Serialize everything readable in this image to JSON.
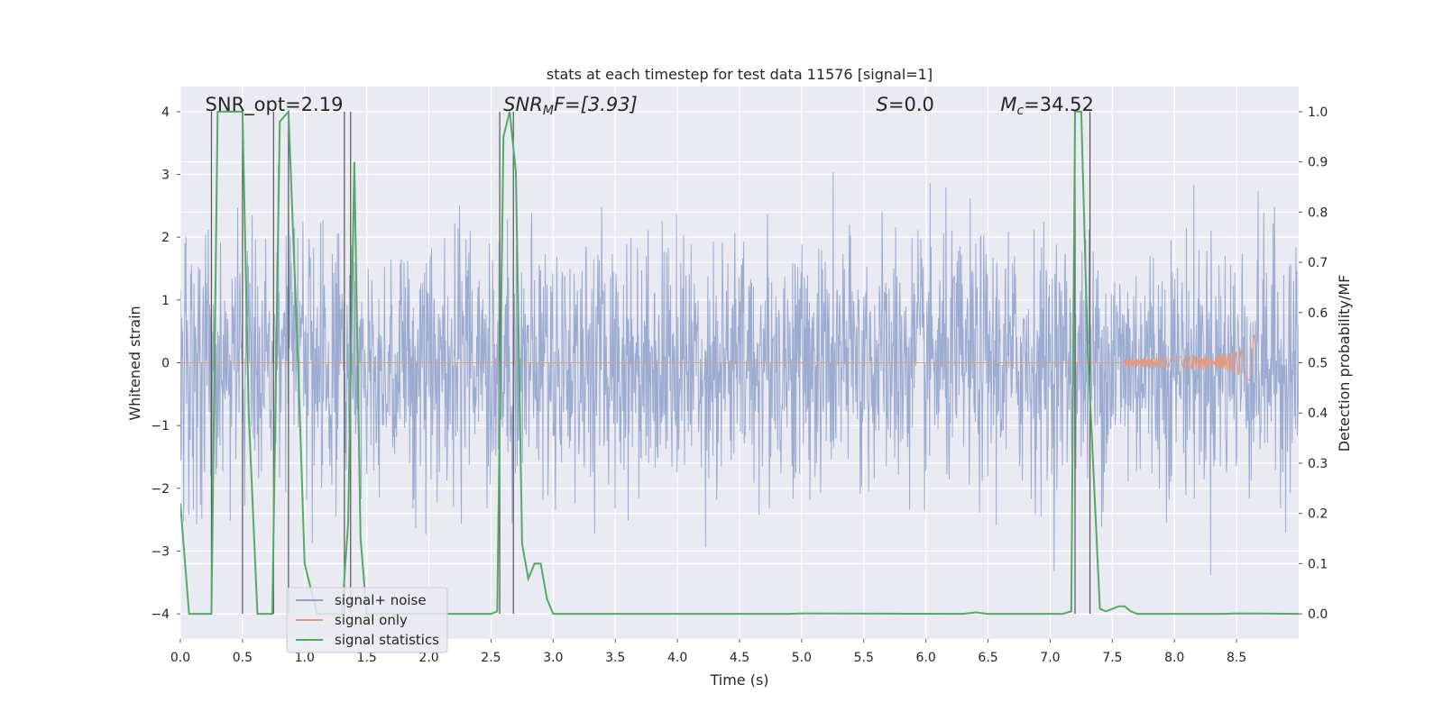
{
  "chart_data": {
    "type": "line",
    "title": "stats at each timestep for test data 11576 [signal=1]",
    "xlabel": "Time (s)",
    "ylabel_left": "Whitened strain",
    "ylabel_right": "Detection probability/MF",
    "xlim": [
      0.0,
      9.0
    ],
    "ylim_left": [
      -4.4,
      4.4
    ],
    "ylim_right": [
      -0.05,
      1.05
    ],
    "x_ticks": [
      0.0,
      0.5,
      1.0,
      1.5,
      2.0,
      2.5,
      3.0,
      3.5,
      4.0,
      4.5,
      5.0,
      5.5,
      6.0,
      6.5,
      7.0,
      7.5,
      8.0,
      8.5
    ],
    "x_tick_labels": [
      "0.0",
      "0.5",
      "1.0",
      "1.5",
      "2.0",
      "2.5",
      "3.0",
      "3.5",
      "4.0",
      "4.5",
      "5.0",
      "5.5",
      "6.0",
      "6.5",
      "7.0",
      "7.5",
      "8.0",
      "8.5"
    ],
    "y_left_ticks": [
      -4,
      -3,
      -2,
      -1,
      0,
      1,
      2,
      3,
      4
    ],
    "y_left_tick_labels": [
      "−4",
      "−3",
      "−2",
      "−1",
      "0",
      "1",
      "2",
      "3",
      "4"
    ],
    "y_right_ticks": [
      0.0,
      0.1,
      0.2,
      0.3,
      0.4,
      0.5,
      0.6,
      0.7,
      0.8,
      0.9,
      1.0
    ],
    "y_right_tick_labels": [
      "0.0",
      "0.1",
      "0.2",
      "0.3",
      "0.4",
      "0.5",
      "0.6",
      "0.7",
      "0.8",
      "0.9",
      "1.0"
    ],
    "grid": true,
    "legend_position": "lower-left",
    "annotations": {
      "snr_opt": "SNR_opt=2.19",
      "snr_mf_prefix": "SNR",
      "snr_mf_sub": "M",
      "snr_mf_suffix": "F=[3.93]",
      "s_prefix": "S",
      "s_suffix": "=0.0",
      "mc_prefix": "M",
      "mc_sub": "c",
      "mc_suffix": "=34.52"
    },
    "annotation_x": [
      0.2,
      2.6,
      5.6,
      6.6
    ],
    "series": [
      {
        "name": "signal+ noise",
        "color": "#8da0cb",
        "axis": "left",
        "style": "noise",
        "amplitude_std": 1.0,
        "x_range": [
          0.0,
          9.0
        ]
      },
      {
        "name": "signal only",
        "color": "#e49a7f",
        "axis": "left",
        "style": "chirp",
        "chirp_end_x": 8.65,
        "chirp_peak": 0.55,
        "chirp_start_x": 7.6
      },
      {
        "name": "signal statistics",
        "color": "#55a868",
        "axis": "right",
        "x": [
          0.0,
          0.07,
          0.25,
          0.3,
          0.5,
          0.55,
          0.62,
          0.7,
          0.74,
          0.8,
          0.87,
          0.95,
          1.0,
          1.05,
          1.1,
          1.15,
          1.2,
          1.25,
          1.3,
          1.35,
          1.4,
          1.45,
          1.5,
          1.6,
          2.0,
          2.5,
          2.55,
          2.6,
          2.65,
          2.7,
          2.75,
          2.8,
          2.85,
          2.9,
          2.95,
          3.0,
          3.05,
          3.5,
          4.0,
          4.9,
          5.0,
          6.3,
          6.4,
          6.5,
          7.1,
          7.17,
          7.2,
          7.25,
          7.3,
          7.4,
          7.45,
          7.5,
          7.55,
          7.6,
          7.65,
          7.7,
          8.0,
          8.4,
          8.5,
          9.0
        ],
        "y": [
          0.22,
          0.0,
          0.0,
          1.0,
          1.0,
          0.4,
          0.0,
          0.0,
          0.0,
          0.98,
          1.0,
          0.48,
          0.1,
          0.05,
          0.0,
          0.0,
          0.0,
          0.0,
          0.0,
          0.18,
          0.9,
          0.15,
          0.0,
          0.0,
          0.0,
          0.0,
          0.005,
          0.95,
          1.0,
          0.88,
          0.14,
          0.07,
          0.1,
          0.1,
          0.03,
          0.0,
          0.0,
          0.0,
          0.0,
          0.0,
          0.001,
          0.0,
          0.003,
          0.0,
          0.0,
          0.005,
          1.0,
          1.0,
          0.54,
          0.01,
          0.005,
          0.01,
          0.015,
          0.015,
          0.005,
          0.0,
          0.0,
          0.0,
          0.001,
          0.0
        ]
      }
    ],
    "vertical_markers_x": [
      0.25,
      0.5,
      0.75,
      0.87,
      1.32,
      1.37,
      2.57,
      2.68,
      7.2,
      7.32
    ]
  }
}
